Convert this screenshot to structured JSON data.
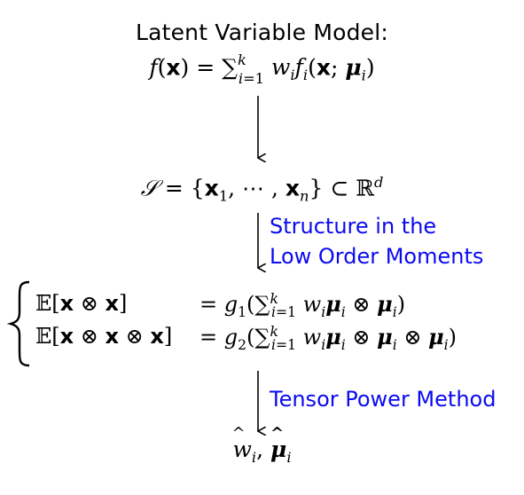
{
  "nodes": {
    "model_title": "Latent Variable Model:",
    "model_formula": "f(x) = ∑_{i=1}^{k} w_i f_i(x; μ_i)",
    "sample_set": "S = {x_1, ⋯ , x_n} ⊂ ℝ^d",
    "moment_2_lhs": "𝔼[x ⊗ x]",
    "moment_2_rhs": "= g_1(∑_{i=1}^{k} w_i μ_i ⊗ μ_i)",
    "moment_3_lhs": "𝔼[x ⊗ x ⊗ x]",
    "moment_3_rhs": "= g_2(∑_{i=1}^{k} w_i μ_i ⊗ μ_i ⊗ μ_i)",
    "estimates": "ŵ_i, μ̂_i"
  },
  "edges": [
    {
      "from": "model",
      "to": "samples",
      "label": ""
    },
    {
      "from": "samples",
      "to": "moments",
      "label_line1": "Structure in the",
      "label_line2": "Low Order Moments"
    },
    {
      "from": "moments",
      "to": "estimates",
      "label": "Tensor Power Method"
    }
  ],
  "colors": {
    "text": "#000000",
    "edge_label": "#0a0af0"
  }
}
